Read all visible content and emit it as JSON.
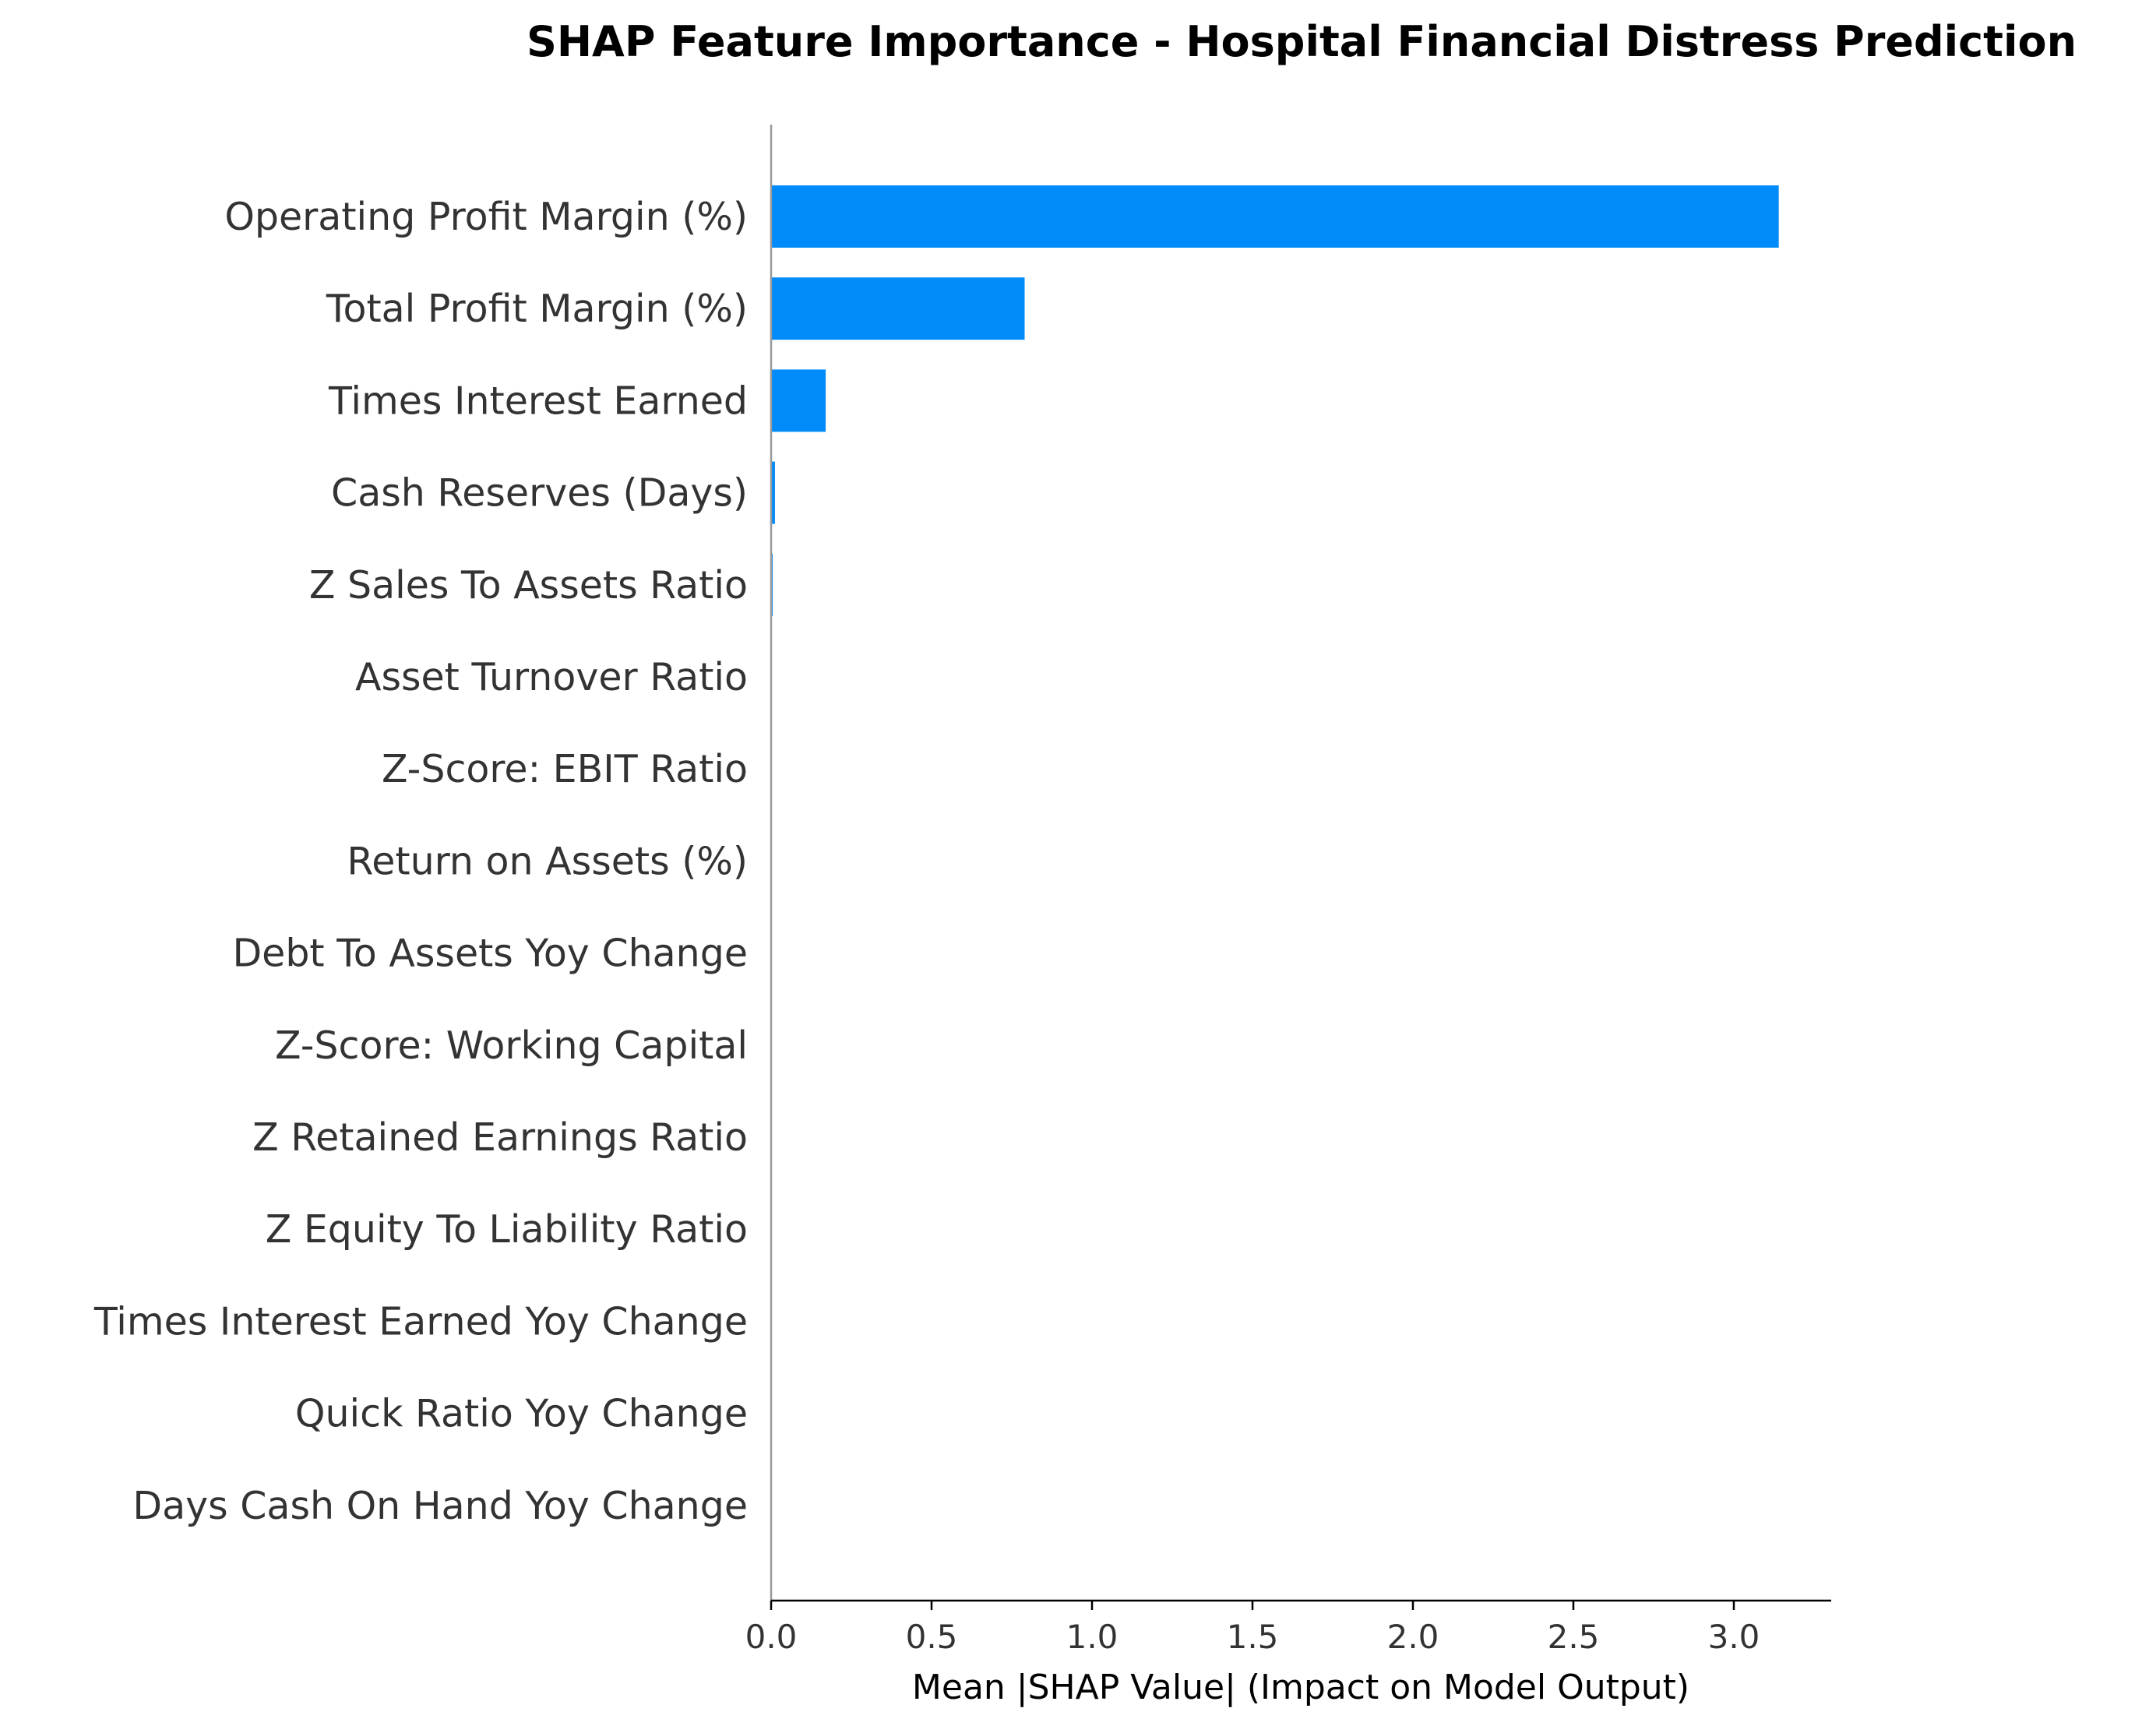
{
  "chart_data": {
    "type": "bar",
    "orientation": "horizontal",
    "title": "SHAP Feature Importance - Hospital Financial Distress Prediction",
    "xlabel": "Mean |SHAP Value| (Impact on Model Output)",
    "ylabel": "",
    "xlim": [
      0,
      3.3
    ],
    "xticks": [
      "0.0",
      "0.5",
      "1.0",
      "1.5",
      "2.0",
      "2.5",
      "3.0"
    ],
    "grid": false,
    "bar_color": "#008bfb",
    "categories": [
      "Operating Profit Margin (%)",
      "Total Profit Margin (%)",
      "Times Interest Earned",
      "Cash Reserves (Days)",
      "Z Sales To Assets Ratio",
      "Asset Turnover Ratio",
      "Z-Score: EBIT Ratio",
      "Return on Assets (%)",
      "Debt To Assets Yoy Change",
      "Z-Score: Working Capital",
      "Z Retained Earnings Ratio",
      "Z Equity To Liability Ratio",
      "Times Interest Earned Yoy Change",
      "Quick Ratio Yoy Change",
      "Days Cash On Hand Yoy Change"
    ],
    "values": [
      3.14,
      0.79,
      0.17,
      0.012,
      0.005,
      0.0,
      0.0,
      0.0,
      0.0,
      0.0,
      0.0,
      0.0,
      0.0,
      0.0,
      0.0
    ]
  }
}
